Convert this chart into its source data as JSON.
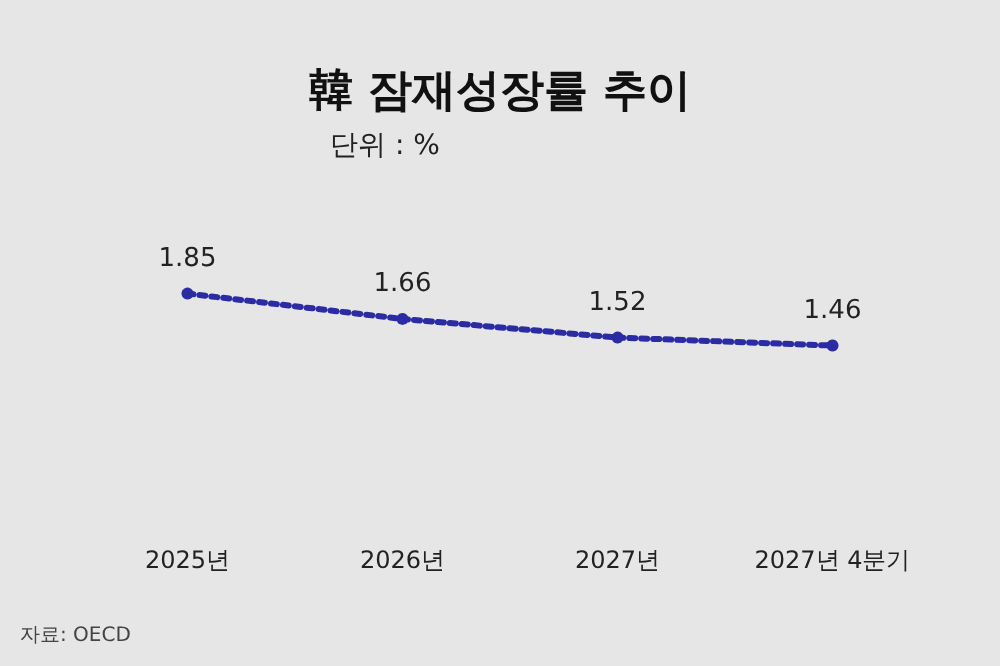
{
  "chart_data": {
    "type": "line",
    "title": "韓 잠재성장률 추이",
    "subtitle": "단위 : %",
    "categories": [
      "2025년",
      "2026년",
      "2027년",
      "2027년 4분기"
    ],
    "series": [
      {
        "color": "#2b2ba3",
        "values": [
          1.85,
          1.66,
          1.52,
          1.46
        ]
      }
    ],
    "data_labels": true,
    "marker": "circle",
    "line_style": "dotted",
    "annotations": [
      "자료: OECD"
    ]
  }
}
